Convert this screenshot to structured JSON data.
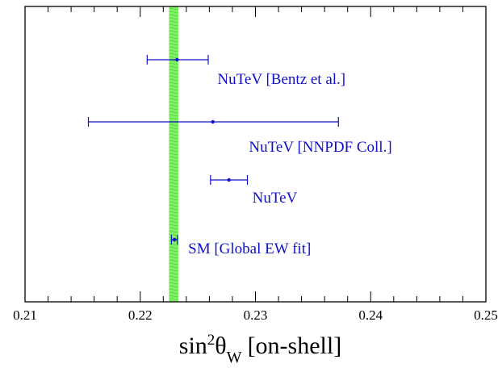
{
  "chart_data": {
    "type": "scatter",
    "title": "",
    "xlabel": {
      "base": "sin",
      "sup": "2",
      "theta": "θ",
      "sub": "W",
      "suffix": "[on-shell]"
    },
    "xlim": [
      0.21,
      0.25
    ],
    "x_ticks": [
      {
        "value": 0.21,
        "label": "0.21"
      },
      {
        "value": 0.22,
        "label": "0.22"
      },
      {
        "value": 0.23,
        "label": "0.23"
      },
      {
        "value": 0.24,
        "label": "0.24"
      },
      {
        "value": 0.25,
        "label": "0.25"
      }
    ],
    "band": {
      "low": 0.2225,
      "high": 0.2233,
      "color": "#66ee44"
    },
    "points_color": "#1010cc",
    "points": [
      {
        "label": "NuTeV [Bentz et al.]",
        "value": 0.2232,
        "err_low": 0.0026,
        "err_high": 0.0027
      },
      {
        "label": "NuTeV [NNPDF Coll.]",
        "value": 0.2263,
        "err_low": 0.0108,
        "err_high": 0.0109
      },
      {
        "label": "NuTeV",
        "value": 0.2277,
        "err_low": 0.0016,
        "err_high": 0.0016
      },
      {
        "label": "SM [Global EW fit]",
        "value": 0.22297,
        "err_low": 0.00026,
        "err_high": 0.00026
      }
    ]
  }
}
